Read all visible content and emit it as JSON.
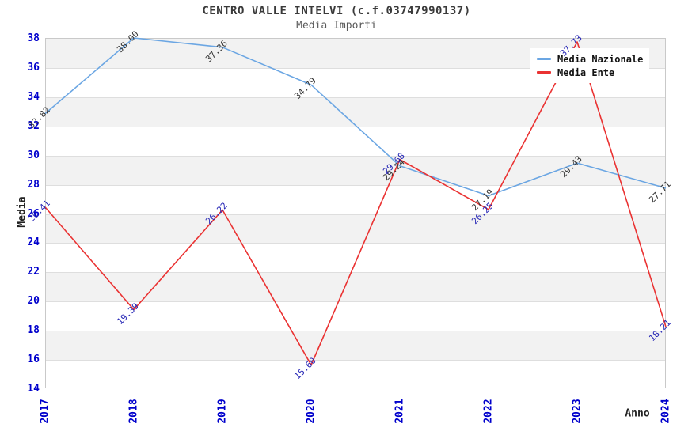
{
  "chart": {
    "title": "CENTRO VALLE INTELVI (c.f.03747990137)",
    "subtitle": "Media Importi",
    "ylabel": "Media",
    "xlabel": "Anno"
  },
  "chart_data": {
    "type": "line",
    "x": [
      2017,
      2018,
      2019,
      2020,
      2021,
      2022,
      2023,
      2024
    ],
    "series": [
      {
        "name": "Media Nazionale",
        "color": "#6ba6e3",
        "label_color": "#333333",
        "values": [
          32.82,
          38.0,
          37.36,
          34.79,
          29.24,
          27.19,
          29.43,
          27.71
        ]
      },
      {
        "name": "Media Ente",
        "color": "#ea3232",
        "label_color": "#2525b5",
        "values": [
          26.41,
          19.39,
          26.22,
          15.6,
          29.68,
          26.25,
          37.73,
          18.21
        ]
      }
    ],
    "ylim": [
      14,
      38
    ],
    "ytick_step": 2,
    "tick_label_color": "#0000cc",
    "band_colors": [
      "#f2f2f2",
      "#ffffff"
    ],
    "grid": "horizontal-bands",
    "legend_position": "top-right",
    "value_label_format": "0.00"
  }
}
